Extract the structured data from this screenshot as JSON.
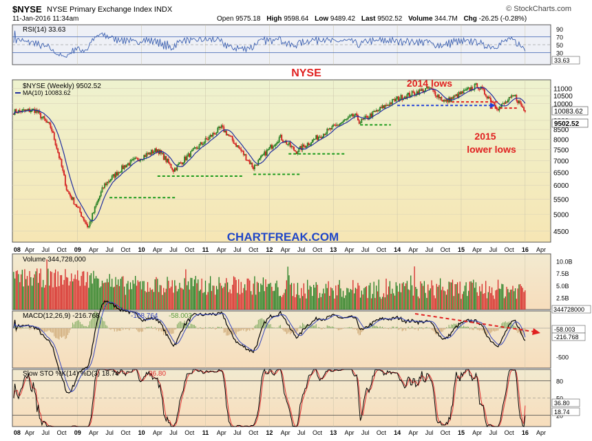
{
  "header": {
    "symbol": "$NYSE",
    "name": "NYSE Primary Exchange Index  INDX",
    "date": "11-Jan-2016 11:34am",
    "brand": "© StockCharts.com",
    "open_label": "Open",
    "open": "9575.18",
    "high_label": "High",
    "high": "9598.64",
    "low_label": "Low",
    "low": "9489.42",
    "last_label": "Last",
    "last": "9502.52",
    "volume_label": "Volume",
    "volume": "344.7M",
    "chg_label": "Chg",
    "chg": "-26.25 (-0.28%)"
  },
  "colors": {
    "up": "#1a7a1a",
    "down": "#d42020",
    "ma": "#1f2d9e",
    "rsi": "#3a5fb0",
    "price_bg_top": "#eef2cf",
    "price_bg_bottom": "#f6e6b4",
    "lower_bg": "#f7ddbc",
    "annotation_red": "#e02020",
    "annotation_blue": "#1f3fd8",
    "support_green": "#1b9a1b",
    "watermark": "#1f46c8"
  },
  "chart_data": [
    {
      "type": "line",
      "panel": "RSI",
      "legend": "RSI(14) 33.63",
      "y_ticks": [
        "90",
        "70",
        "50",
        "30",
        "10"
      ],
      "last_value_box": "33.63",
      "ylim": [
        0,
        100
      ]
    },
    {
      "type": "candlestick",
      "panel": "price",
      "title": "NYSE",
      "legend": [
        "$NYSE (Weekly) 9502.52",
        "MA(10) 10083.62"
      ],
      "y_ticks": [
        "11000",
        "10500",
        "10000",
        "9000",
        "8500",
        "8000",
        "7500",
        "7000",
        "6500",
        "6000",
        "5500",
        "5000",
        "4500"
      ],
      "ylim": [
        4200,
        11600
      ],
      "x_ticks": [
        "08",
        "Apr",
        "Jul",
        "Oct",
        "09",
        "Apr",
        "Jul",
        "Oct",
        "10",
        "Apr",
        "Jul",
        "Oct",
        "11",
        "Apr",
        "Jul",
        "Oct",
        "12",
        "Apr",
        "Jul",
        "Oct",
        "13",
        "Apr",
        "Jul",
        "Oct",
        "14",
        "Apr",
        "Jul",
        "Oct",
        "15",
        "Apr",
        "Jul",
        "Oct",
        "16",
        "Apr"
      ],
      "value_boxes": [
        "10083.62",
        "9502.52"
      ],
      "annotations": [
        "2014 lows",
        "2015",
        "lower lows",
        "CHARTFREAK.COM"
      ],
      "key_points": [
        {
          "x": "2008-01",
          "y": 9500
        },
        {
          "x": "2008-05",
          "y": 9600
        },
        {
          "x": "2008-08",
          "y": 8600
        },
        {
          "x": "2008-11",
          "y": 5800
        },
        {
          "x": "2009-03",
          "y": 4600
        },
        {
          "x": "2009-06",
          "y": 6000
        },
        {
          "x": "2009-10",
          "y": 6800
        },
        {
          "x": "2010-04",
          "y": 7500
        },
        {
          "x": "2010-07",
          "y": 6600
        },
        {
          "x": "2011-04",
          "y": 8600
        },
        {
          "x": "2011-10",
          "y": 6700
        },
        {
          "x": "2012-03",
          "y": 8100
        },
        {
          "x": "2012-06",
          "y": 7400
        },
        {
          "x": "2013-05",
          "y": 9300
        },
        {
          "x": "2013-06",
          "y": 8900
        },
        {
          "x": "2014-01",
          "y": 10300
        },
        {
          "x": "2014-07",
          "y": 11000
        },
        {
          "x": "2014-10",
          "y": 10100
        },
        {
          "x": "2015-04",
          "y": 11200
        },
        {
          "x": "2015-08",
          "y": 9700
        },
        {
          "x": "2015-11",
          "y": 10500
        },
        {
          "x": "2016-01",
          "y": 9502
        }
      ]
    },
    {
      "type": "bar",
      "panel": "volume",
      "legend": "Volume 344,728,000",
      "y_ticks": [
        "10.0B",
        "7.5B",
        "5.0B",
        "2.5B"
      ],
      "value_box": "344728000"
    },
    {
      "type": "line",
      "panel": "MACD",
      "legend": [
        "MACD(12,26,9) -216.768",
        "-158.764",
        "-58.003"
      ],
      "y_ticks": [
        "0",
        "-500"
      ],
      "value_boxes": [
        "-58.003",
        "-216.768"
      ]
    },
    {
      "type": "line",
      "panel": "Slow STO",
      "legend": [
        "Slow STO %K(14) %D(3) 18.74",
        "36.80"
      ],
      "y_ticks": [
        "80",
        "50",
        "20"
      ],
      "value_boxes": [
        "36.80",
        "18.74"
      ],
      "x_ticks": [
        "08",
        "Apr",
        "Jul",
        "Oct",
        "09",
        "Apr",
        "Jul",
        "Oct",
        "10",
        "Apr",
        "Jul",
        "Oct",
        "11",
        "Apr",
        "Jul",
        "Oct",
        "12",
        "Apr",
        "Jul",
        "Oct",
        "13",
        "Apr",
        "Jul",
        "Oct",
        "14",
        "Apr",
        "Jul",
        "Oct",
        "15",
        "Apr",
        "Jul",
        "Oct",
        "16",
        "Apr"
      ]
    }
  ]
}
